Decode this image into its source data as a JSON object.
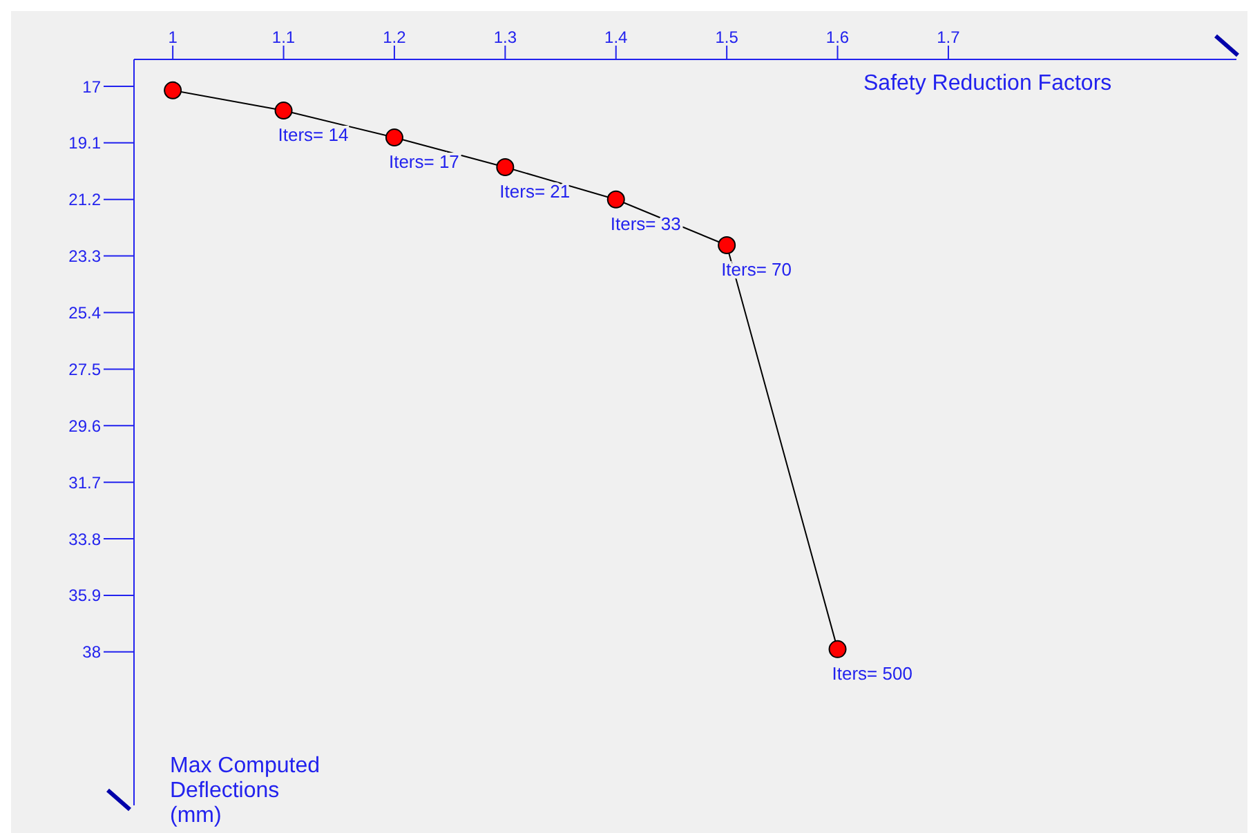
{
  "chart_data": {
    "type": "line",
    "xlabel": "Safety Reduction Factors",
    "ylabel": "Max Computed Deflections (mm)",
    "x": [
      1,
      1.1,
      1.2,
      1.3,
      1.4,
      1.5,
      1.6
    ],
    "series": [
      {
        "color": "#ff0000",
        "values": [
          17.15,
          17.9,
          18.9,
          20.0,
          21.2,
          22.9,
          37.9
        ]
      }
    ],
    "xlim": [
      0.965,
      1.96
    ],
    "xticks": [
      1,
      1.1,
      1.2,
      1.3,
      1.4,
      1.5,
      1.6,
      1.7
    ],
    "ylim": [
      43.7,
      16
    ],
    "yticks": [
      17,
      19.1,
      21.2,
      23.3,
      25.4,
      27.5,
      29.6,
      31.7,
      33.8,
      35.9,
      38
    ],
    "marker": "circle",
    "line_style": "solid",
    "grid": false,
    "legend": false,
    "annotations": [
      {
        "text": "Iters= 14",
        "x": 1.1,
        "y": 17.9
      },
      {
        "text": "Iters= 17",
        "x": 1.2,
        "y": 18.9
      },
      {
        "text": "Iters= 21",
        "x": 1.3,
        "y": 20.0
      },
      {
        "text": "Iters= 33",
        "x": 1.4,
        "y": 21.2
      },
      {
        "text": "Iters= 70",
        "x": 1.5,
        "y": 22.9
      },
      {
        "text": "Iters= 500",
        "x": 1.6,
        "y": 37.9
      }
    ]
  }
}
